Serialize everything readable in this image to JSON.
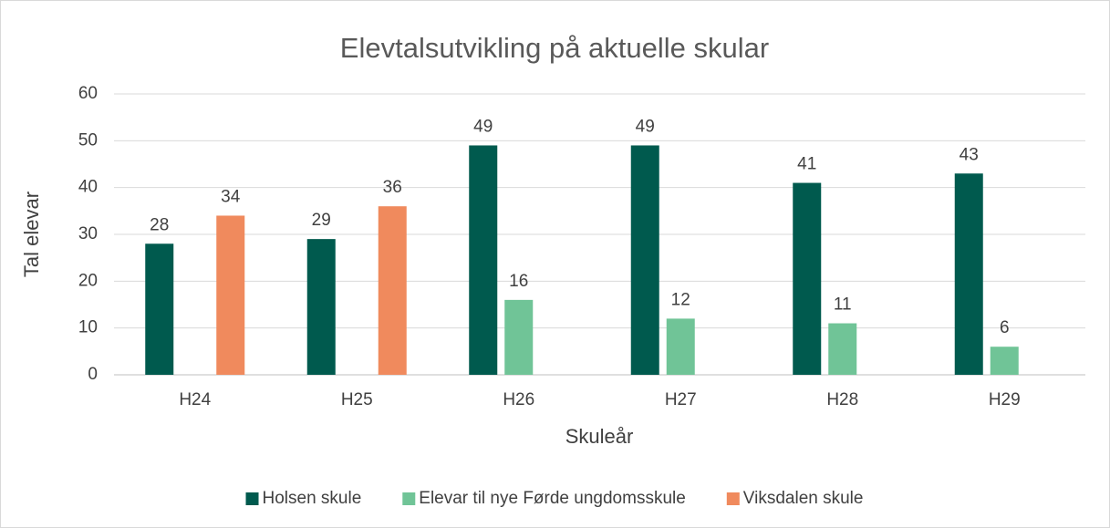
{
  "chart_data": {
    "type": "bar",
    "title": "Elevtalsutvikling på aktuelle skular",
    "xlabel": "Skuleår",
    "ylabel": "Tal elevar",
    "categories": [
      "H24",
      "H25",
      "H26",
      "H27",
      "H28",
      "H29"
    ],
    "series": [
      {
        "name": "Holsen skule",
        "color": "#005a4e",
        "values": [
          28,
          29,
          49,
          49,
          41,
          43
        ]
      },
      {
        "name": "Elevar til nye Førde ungdomsskule",
        "color": "#70c497",
        "values": [
          null,
          null,
          16,
          12,
          11,
          6
        ]
      },
      {
        "name": "Viksdalen skule",
        "color": "#f08a5d",
        "values": [
          34,
          36,
          null,
          null,
          null,
          null
        ]
      }
    ],
    "ylim": [
      0,
      60
    ],
    "yticks": [
      0,
      10,
      20,
      30,
      40,
      50,
      60
    ],
    "grid": true,
    "legend": "bottom"
  }
}
